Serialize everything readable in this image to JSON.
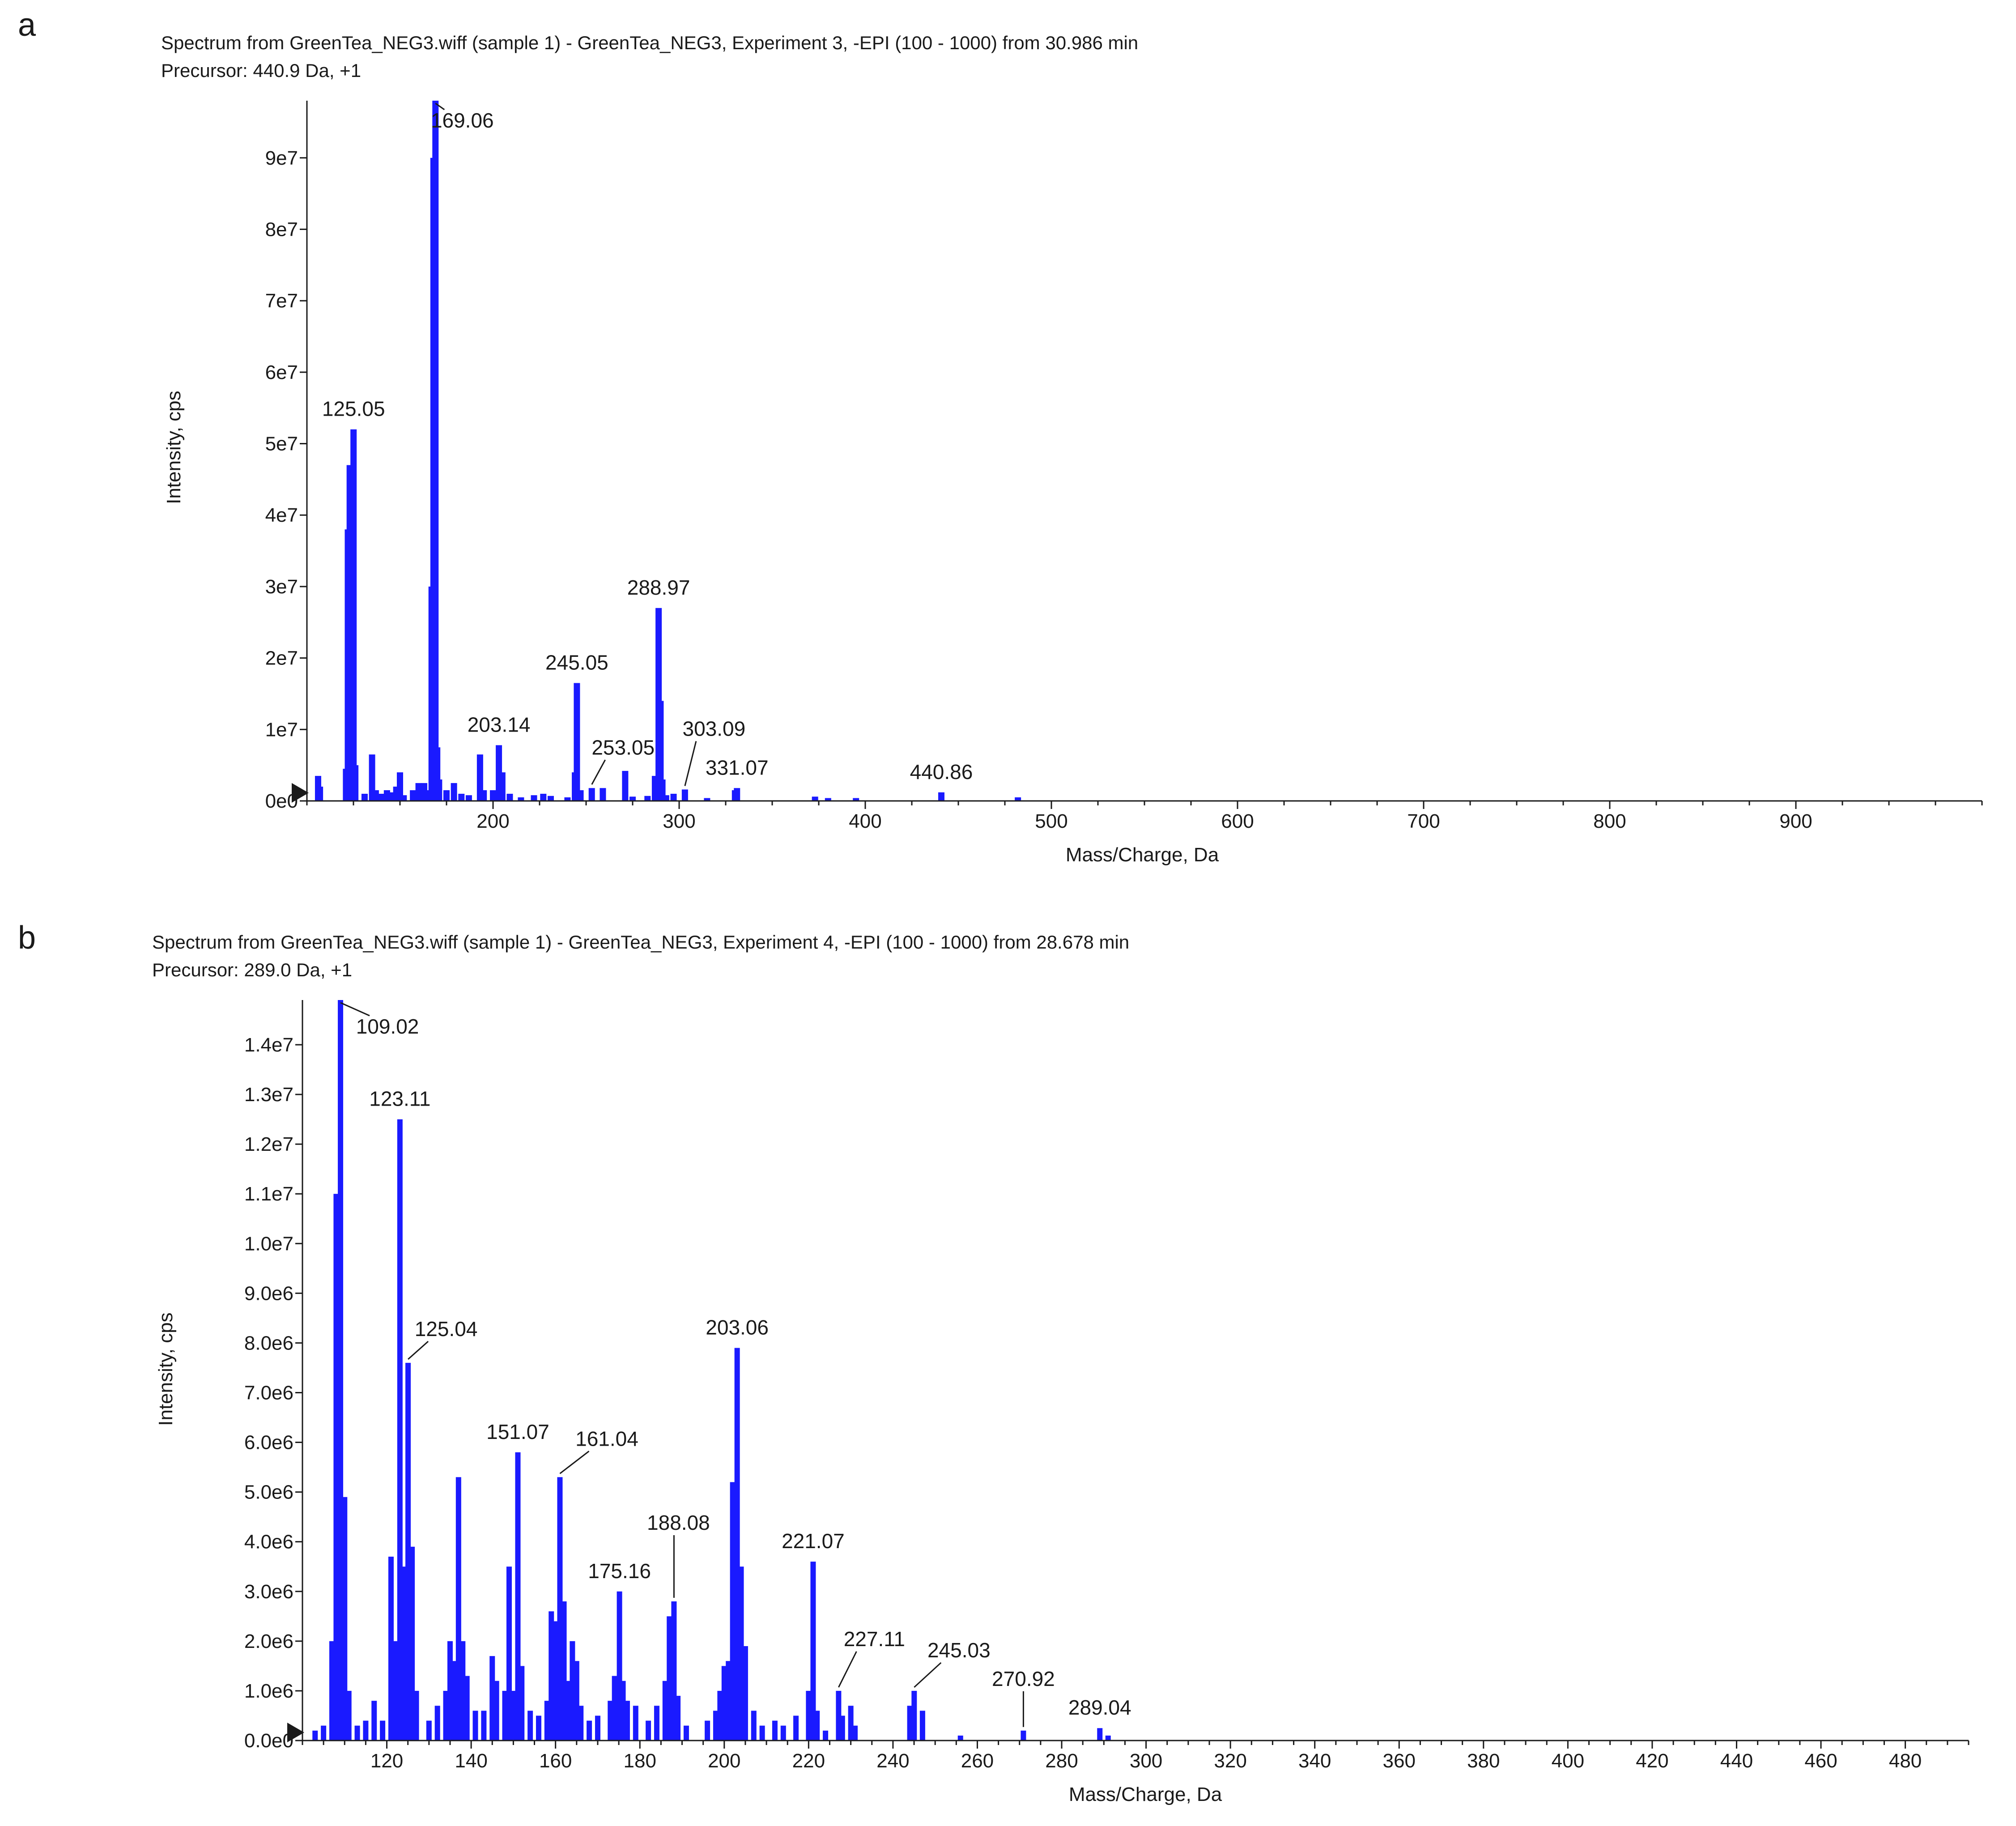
{
  "chart_data": [
    {
      "panel": "a",
      "type": "bar",
      "title": "Spectrum from GreenTea_NEG3.wiff (sample 1) - GreenTea_NEG3, Experiment 3, -EPI (100 - 1000) from 30.986 min",
      "subtitle": "Precursor: 440.9 Da, +1",
      "xlabel": "Mass/Charge, Da",
      "ylabel": "Intensity, cps",
      "xlim": [
        100,
        1000
      ],
      "ylim": [
        0,
        98000000
      ],
      "xticks": [
        200,
        300,
        400,
        500,
        600,
        700,
        800,
        900
      ],
      "xtick_labels": [
        "200",
        "300",
        "400",
        "500",
        "600",
        "700",
        "800",
        "900"
      ],
      "yticks": [
        0,
        10000000,
        20000000,
        30000000,
        40000000,
        50000000,
        60000000,
        70000000,
        80000000,
        90000000
      ],
      "ytick_labels": [
        "0e0",
        "1e7",
        "2e7",
        "3e7",
        "4e7",
        "5e7",
        "6e7",
        "7e7",
        "8e7",
        "9e7"
      ],
      "peaks": [
        [
          106,
          3500000
        ],
        [
          107,
          2000000
        ],
        [
          121,
          4500000
        ],
        [
          122,
          38000000
        ],
        [
          123,
          47000000
        ],
        [
          124,
          22000000
        ],
        [
          125.05,
          52000000
        ],
        [
          126,
          5000000
        ],
        [
          131,
          1000000
        ],
        [
          135,
          6500000
        ],
        [
          137,
          1500000
        ],
        [
          140,
          1000000
        ],
        [
          143,
          1500000
        ],
        [
          145,
          1200000
        ],
        [
          148,
          2000000
        ],
        [
          150,
          4000000
        ],
        [
          152,
          800000
        ],
        [
          157,
          1500000
        ],
        [
          160,
          2500000
        ],
        [
          163,
          2500000
        ],
        [
          165,
          1500000
        ],
        [
          167,
          30000000
        ],
        [
          168,
          90000000
        ],
        [
          169.06,
          98000000
        ],
        [
          170,
          7500000
        ],
        [
          171,
          3000000
        ],
        [
          175,
          1500000
        ],
        [
          179,
          2500000
        ],
        [
          183,
          1000000
        ],
        [
          187,
          800000
        ],
        [
          193,
          6500000
        ],
        [
          195,
          1500000
        ],
        [
          200,
          1500000
        ],
        [
          203.14,
          7800000
        ],
        [
          205,
          4000000
        ],
        [
          209,
          1000000
        ],
        [
          215,
          500000
        ],
        [
          222,
          800000
        ],
        [
          227,
          1000000
        ],
        [
          231,
          700000
        ],
        [
          240,
          500000
        ],
        [
          244,
          4000000
        ],
        [
          245.05,
          16500000
        ],
        [
          247,
          1500000
        ],
        [
          253.05,
          1800000
        ],
        [
          259,
          1800000
        ],
        [
          271,
          4200000
        ],
        [
          275,
          600000
        ],
        [
          283,
          700000
        ],
        [
          287,
          3500000
        ],
        [
          288.97,
          27000000
        ],
        [
          290,
          14000000
        ],
        [
          291,
          3000000
        ],
        [
          293,
          800000
        ],
        [
          297,
          1000000
        ],
        [
          303.09,
          1600000
        ],
        [
          315,
          400000
        ],
        [
          330,
          1500000
        ],
        [
          331.07,
          1800000
        ],
        [
          373,
          600000
        ],
        [
          380,
          400000
        ],
        [
          395,
          400000
        ],
        [
          440.86,
          1200000
        ],
        [
          482,
          500000
        ]
      ],
      "annotations": [
        {
          "label": "125.05",
          "x": 125.05,
          "y": 52000000
        },
        {
          "label": "169.06",
          "x": 169.06,
          "y": 98000000
        },
        {
          "label": "203.14",
          "x": 203.14,
          "y": 7800000
        },
        {
          "label": "245.05",
          "x": 245.05,
          "y": 16500000
        },
        {
          "label": "253.05",
          "x": 253.05,
          "y": 1800000
        },
        {
          "label": "288.97",
          "x": 288.97,
          "y": 27000000
        },
        {
          "label": "303.09",
          "x": 303.09,
          "y": 1600000
        },
        {
          "label": "331.07",
          "x": 331.07,
          "y": 1800000
        },
        {
          "label": "440.86",
          "x": 440.86,
          "y": 1200000
        }
      ]
    },
    {
      "panel": "b",
      "type": "bar",
      "title": "Spectrum from GreenTea_NEG3.wiff (sample 1) - GreenTea_NEG3, Experiment 4, -EPI (100 - 1000) from 28.678 min",
      "subtitle": "Precursor: 289.0 Da, +1",
      "xlabel": "Mass/Charge, Da",
      "ylabel": "Intensity, cps",
      "xlim": [
        100,
        495
      ],
      "ylim": [
        0,
        14900000
      ],
      "xticks": [
        120,
        140,
        160,
        180,
        200,
        220,
        240,
        260,
        280,
        300,
        320,
        340,
        360,
        380,
        400,
        420,
        440,
        460,
        480
      ],
      "xtick_labels": [
        "120",
        "140",
        "160",
        "180",
        "200",
        "220",
        "240",
        "260",
        "280",
        "300",
        "320",
        "340",
        "360",
        "380",
        "400",
        "420",
        "440",
        "460",
        "480"
      ],
      "yticks": [
        0,
        1000000,
        2000000,
        3000000,
        4000000,
        5000000,
        6000000,
        7000000,
        8000000,
        9000000,
        10000000,
        11000000,
        12000000,
        13000000,
        14000000
      ],
      "ytick_labels": [
        "0.0e0",
        "1.0e6",
        "2.0e6",
        "3.0e6",
        "4.0e6",
        "5.0e6",
        "6.0e6",
        "7.0e6",
        "8.0e6",
        "9.0e6",
        "1.0e7",
        "1.1e7",
        "1.2e7",
        "1.3e7",
        "1.4e7"
      ],
      "peaks": [
        [
          103,
          200000
        ],
        [
          105,
          300000
        ],
        [
          107,
          2000000
        ],
        [
          108,
          11000000
        ],
        [
          109.02,
          14900000
        ],
        [
          110,
          4900000
        ],
        [
          111,
          1000000
        ],
        [
          113,
          300000
        ],
        [
          115,
          400000
        ],
        [
          117,
          800000
        ],
        [
          119,
          400000
        ],
        [
          121,
          3700000
        ],
        [
          122,
          2000000
        ],
        [
          123.11,
          12500000
        ],
        [
          124,
          3500000
        ],
        [
          125.04,
          7600000
        ],
        [
          126,
          3900000
        ],
        [
          127,
          1000000
        ],
        [
          130,
          400000
        ],
        [
          132,
          700000
        ],
        [
          134,
          1000000
        ],
        [
          135,
          2000000
        ],
        [
          136,
          1600000
        ],
        [
          137,
          5300000
        ],
        [
          138,
          2000000
        ],
        [
          139,
          1300000
        ],
        [
          141,
          600000
        ],
        [
          143,
          600000
        ],
        [
          145,
          1700000
        ],
        [
          146,
          1200000
        ],
        [
          148,
          1000000
        ],
        [
          149,
          3500000
        ],
        [
          150,
          1000000
        ],
        [
          151.07,
          5800000
        ],
        [
          152,
          1500000
        ],
        [
          154,
          600000
        ],
        [
          156,
          500000
        ],
        [
          158,
          800000
        ],
        [
          159,
          2600000
        ],
        [
          160,
          2400000
        ],
        [
          161.04,
          5300000
        ],
        [
          162,
          2800000
        ],
        [
          163,
          1200000
        ],
        [
          164,
          2000000
        ],
        [
          165,
          1600000
        ],
        [
          166,
          700000
        ],
        [
          168,
          400000
        ],
        [
          170,
          500000
        ],
        [
          173,
          800000
        ],
        [
          174,
          1300000
        ],
        [
          175.16,
          3000000
        ],
        [
          176,
          1200000
        ],
        [
          177,
          800000
        ],
        [
          179,
          700000
        ],
        [
          182,
          400000
        ],
        [
          184,
          700000
        ],
        [
          186,
          1200000
        ],
        [
          187,
          2500000
        ],
        [
          188.08,
          2800000
        ],
        [
          189,
          900000
        ],
        [
          191,
          300000
        ],
        [
          196,
          400000
        ],
        [
          198,
          600000
        ],
        [
          199,
          1000000
        ],
        [
          200,
          1500000
        ],
        [
          201,
          1600000
        ],
        [
          202,
          5200000
        ],
        [
          203.06,
          7900000
        ],
        [
          204,
          3500000
        ],
        [
          205,
          1900000
        ],
        [
          207,
          600000
        ],
        [
          209,
          300000
        ],
        [
          212,
          400000
        ],
        [
          214,
          300000
        ],
        [
          217,
          500000
        ],
        [
          220,
          1000000
        ],
        [
          221.07,
          3600000
        ],
        [
          222,
          600000
        ],
        [
          224,
          200000
        ],
        [
          227.11,
          1000000
        ],
        [
          228,
          500000
        ],
        [
          230,
          700000
        ],
        [
          231,
          300000
        ],
        [
          244,
          700000
        ],
        [
          245.03,
          1000000
        ],
        [
          247,
          600000
        ],
        [
          256,
          100000
        ],
        [
          270.92,
          200000
        ],
        [
          289.04,
          250000
        ],
        [
          291,
          100000
        ]
      ],
      "annotations": [
        {
          "label": "109.02",
          "x": 109.02,
          "y": 14900000
        },
        {
          "label": "123.11",
          "x": 123.11,
          "y": 12500000
        },
        {
          "label": "125.04",
          "x": 125.04,
          "y": 7600000
        },
        {
          "label": "151.07",
          "x": 151.07,
          "y": 5800000
        },
        {
          "label": "161.04",
          "x": 161.04,
          "y": 5300000
        },
        {
          "label": "175.16",
          "x": 175.16,
          "y": 3000000
        },
        {
          "label": "188.08",
          "x": 188.08,
          "y": 2800000
        },
        {
          "label": "203.06",
          "x": 203.06,
          "y": 7900000
        },
        {
          "label": "221.07",
          "x": 221.07,
          "y": 3600000
        },
        {
          "label": "227.11",
          "x": 227.11,
          "y": 1000000
        },
        {
          "label": "245.03",
          "x": 245.03,
          "y": 1000000
        },
        {
          "label": "270.92",
          "x": 270.92,
          "y": 200000
        },
        {
          "label": "289.04",
          "x": 289.04,
          "y": 250000
        }
      ]
    }
  ],
  "style": {
    "bar_color": "#1a1aff",
    "axis_color": "#1a1a1a",
    "text_color": "#1a1a1a"
  }
}
